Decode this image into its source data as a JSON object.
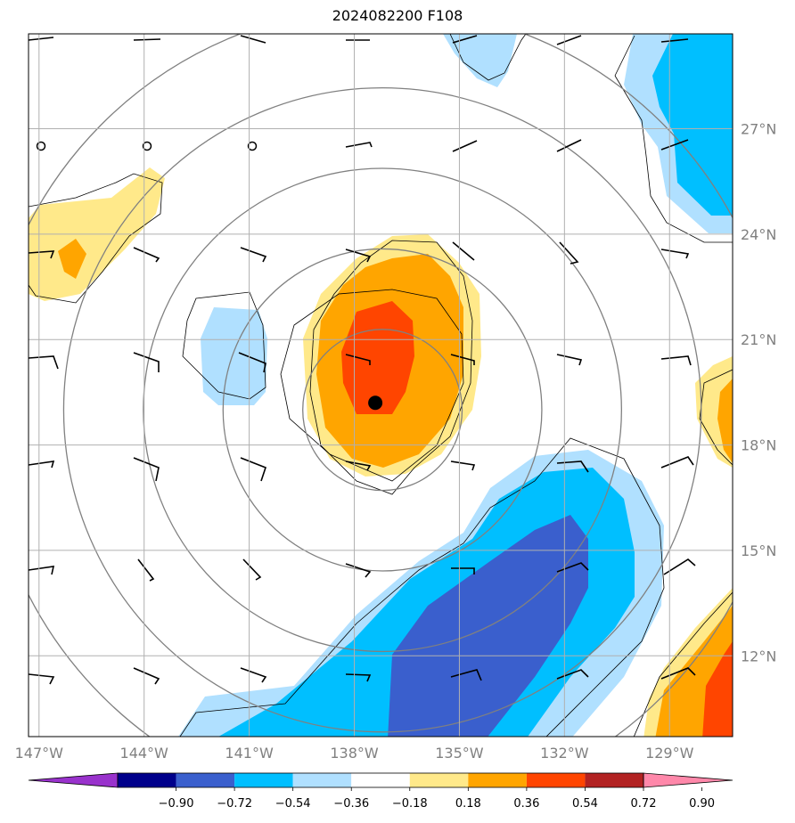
{
  "title": "2024082200 F108",
  "map": {
    "lon_range": [
      -147.3,
      -127.2
    ],
    "lat_range": [
      9.7,
      29.7
    ],
    "lon_ticks": [
      {
        "value": -147,
        "label": "147°W"
      },
      {
        "value": -144,
        "label": "144°W"
      },
      {
        "value": -141,
        "label": "141°W"
      },
      {
        "value": -138,
        "label": "138°W"
      },
      {
        "value": -135,
        "label": "135°W"
      },
      {
        "value": -132,
        "label": "132°W"
      },
      {
        "value": -129,
        "label": "129°W"
      }
    ],
    "lat_ticks": [
      {
        "value": 12,
        "label": "12°N"
      },
      {
        "value": 15,
        "label": "15°N"
      },
      {
        "value": 18,
        "label": "18°N"
      },
      {
        "value": 21,
        "label": "21°N"
      },
      {
        "value": 24,
        "label": "24°N"
      },
      {
        "value": 27,
        "label": "27°N"
      }
    ],
    "grid": true,
    "storm_center": {
      "lon": -137.4,
      "lat": 19.2
    },
    "range_rings_deg": [
      2.5,
      5,
      7.5,
      10,
      12.5
    ]
  },
  "colorbar": {
    "labels": [
      "−0.90",
      "−0.72",
      "−0.54",
      "−0.36",
      "−0.18",
      "0.18",
      "0.36",
      "0.54",
      "0.72",
      "0.90"
    ],
    "colors": [
      "#9932cc",
      "#00008b",
      "#3a5fcd",
      "#00bfff",
      "#b0e0ff",
      "#ffffff",
      "#ffe98a",
      "#ffa500",
      "#ff4500",
      "#b22222",
      "#ff88aa"
    ],
    "extend": "both"
  },
  "colors": {
    "ring": "#808080",
    "grid": "#b0b0b0",
    "contour": "#000000"
  }
}
